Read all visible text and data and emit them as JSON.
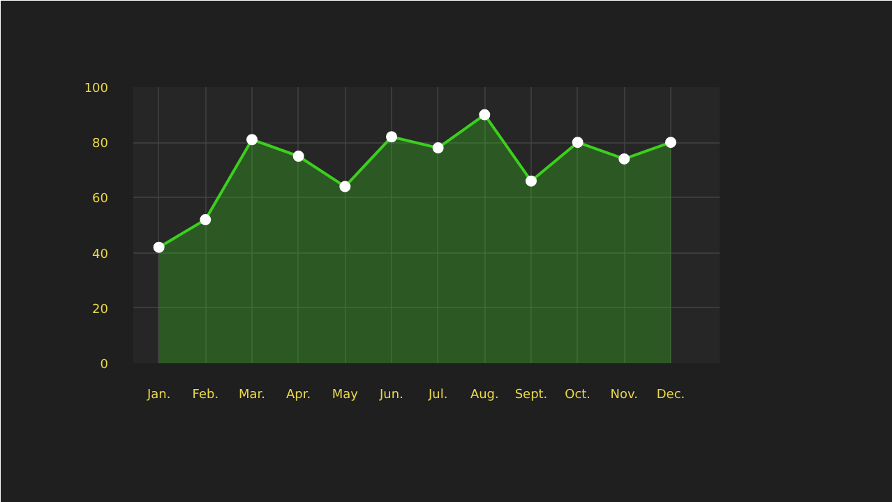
{
  "chart_data": {
    "type": "area",
    "categories": [
      "Jan.",
      "Feb.",
      "Mar.",
      "Apr.",
      "May",
      "Jun.",
      "Jul.",
      "Aug.",
      "Sept.",
      "Oct.",
      "Nov.",
      "Dec."
    ],
    "series": [
      {
        "color": "#3ccf1e",
        "values": [
          42,
          52,
          81,
          75,
          64,
          82,
          78,
          90,
          66,
          80,
          74,
          80
        ]
      }
    ],
    "ylim": [
      0,
      100
    ],
    "yticks": [
      0,
      20,
      40,
      60,
      80,
      100
    ],
    "grid": true,
    "marker": "circle",
    "line_style": "solid"
  }
}
